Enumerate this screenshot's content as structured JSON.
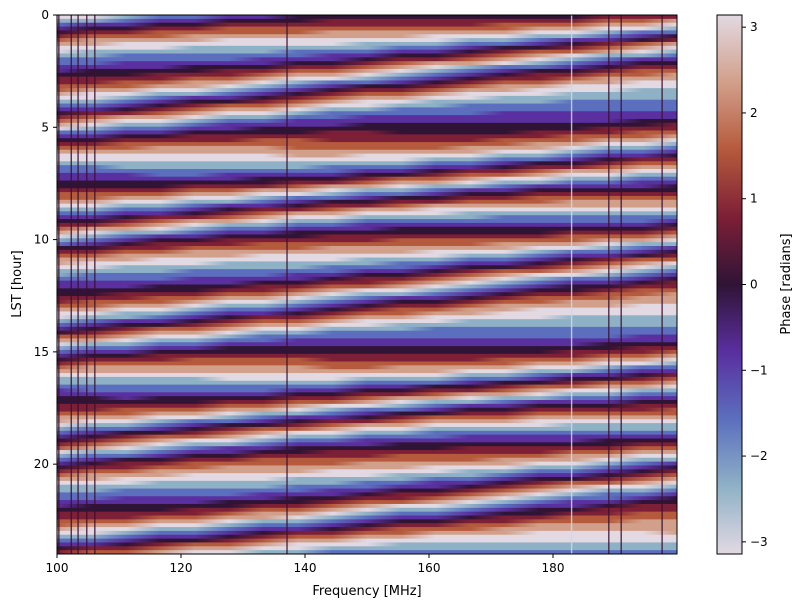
{
  "chart_data": {
    "type": "heatmap",
    "title": "",
    "xlabel": "Frequency [MHz]",
    "ylabel": "LST [hour]",
    "xlim": [
      100,
      200
    ],
    "ylim": [
      24,
      0
    ],
    "x_ticks": [
      "100",
      "120",
      "140",
      "160",
      "180"
    ],
    "x_tick_values": [
      100,
      120,
      140,
      160,
      180
    ],
    "y_ticks": [
      "0",
      "5",
      "10",
      "15",
      "20"
    ],
    "y_tick_values": [
      0,
      5,
      10,
      15,
      20
    ],
    "colorbar": {
      "label": "Phase [radians]",
      "range": [
        -3.14159,
        3.14159
      ],
      "ticks": [
        "3",
        "2",
        "1",
        "0",
        "−1",
        "−2",
        "−3"
      ],
      "tick_values": [
        3,
        2,
        1,
        0,
        -1,
        -2,
        -3
      ],
      "colormap": "twilight_shifted"
    },
    "colormap_stops": [
      "#e2d9e2",
      "#8fb1c6",
      "#5b6fbe",
      "#5a2f9f",
      "#2f1436",
      "#7d1f36",
      "#b55a3d",
      "#d29f8a",
      "#e2d9e2"
    ],
    "vertical_features_mhz": [
      100.3,
      102.3,
      103.4,
      104.8,
      106.1,
      137.1,
      183.0,
      189.0,
      191.0,
      197.6
    ],
    "grid": false
  }
}
